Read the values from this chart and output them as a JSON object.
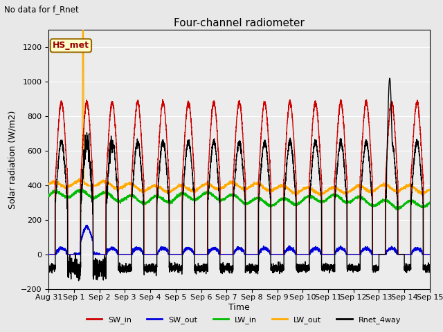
{
  "title": "Four-channel radiometer",
  "subtitle": "No data for f_Rnet",
  "ylabel": "Solar radiation (W/m2)",
  "xlabel": "Time",
  "annotation": "HS_met",
  "ylim": [
    -200,
    1300
  ],
  "yticks": [
    -200,
    0,
    200,
    400,
    600,
    800,
    1000,
    1200
  ],
  "n_days": 15,
  "xtick_labels": [
    "Aug 31",
    "Sep 1",
    "Sep 2",
    "Sep 3",
    "Sep 4",
    "Sep 5",
    "Sep 6",
    "Sep 7",
    "Sep 8",
    "Sep 9",
    "Sep 10",
    "Sep 11",
    "Sep 12",
    "Sep 13",
    "Sep 14",
    "Sep 15"
  ],
  "colors": {
    "SW_in": "#cc0000",
    "SW_out": "#0000dd",
    "LW_in": "#00bb00",
    "LW_out": "#ffaa00",
    "Rnet_4way": "#000000"
  },
  "bg_color": "#e8e8e8",
  "plot_bg": "#ececec"
}
